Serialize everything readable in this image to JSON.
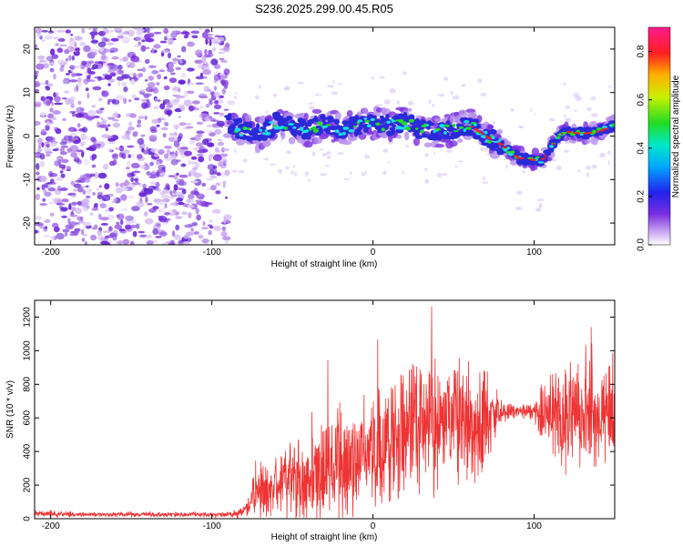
{
  "title": "S236.2025.299.00.45.R05",
  "chart_data": [
    {
      "type": "heatmap",
      "title": "S236.2025.299.00.45.R05",
      "xlabel": "Height of straight line (km)",
      "ylabel": "Frequency (Hz)",
      "xlim": [
        -210,
        150
      ],
      "ylim": [
        -25,
        25
      ],
      "x_ticks": [
        -200,
        -100,
        0,
        100
      ],
      "y_ticks": [
        -20,
        -10,
        0,
        10,
        20
      ],
      "noise_region_x": [
        -210,
        -90
      ],
      "signal_track": {
        "x": [
          -90,
          -80,
          -70,
          -60,
          -50,
          -40,
          -30,
          -20,
          -10,
          0,
          10,
          20,
          30,
          40,
          50,
          60,
          70,
          80,
          90,
          100,
          105,
          110,
          115,
          120,
          130,
          140,
          150
        ],
        "freq_hz": [
          3,
          1,
          0.5,
          3,
          2,
          1.5,
          3,
          1.5,
          2.5,
          3,
          2.5,
          3,
          1.5,
          1,
          1.5,
          2.5,
          0,
          -2,
          -5,
          -5.5,
          -5.5,
          -3,
          0,
          1,
          0.5,
          1,
          2.5
        ]
      },
      "colorbar": {
        "label": "Normalized spectral amplitude",
        "range": [
          0,
          0.9
        ],
        "ticks": [
          "0.0",
          "0.2",
          "0.4",
          "0.6",
          "0.8"
        ]
      },
      "colors": {
        "noise": "#7a2fe0",
        "low": "#2a2ad8",
        "mid": "#18e0e0",
        "high": "#22dd22",
        "peak": "#ee2222"
      }
    },
    {
      "type": "line",
      "xlabel": "Height of straight line (km)",
      "ylabel": "SNR (10 * v/v)",
      "xlim": [
        -210,
        150
      ],
      "ylim": [
        0,
        1300
      ],
      "x_ticks": [
        -200,
        -100,
        0,
        100
      ],
      "y_ticks": [
        0,
        200,
        400,
        600,
        800,
        1000,
        1200
      ],
      "series": [
        {
          "name": "SNR",
          "color": "#ee3333",
          "x": [
            -210,
            -180,
            -150,
            -120,
            -90,
            -80,
            -75,
            -70,
            -60,
            -50,
            -40,
            -30,
            -20,
            -10,
            0,
            10,
            20,
            30,
            40,
            50,
            60,
            70,
            80,
            90,
            100,
            110,
            120,
            130,
            140,
            150
          ],
          "y": [
            30,
            25,
            25,
            25,
            25,
            40,
            100,
            150,
            180,
            220,
            250,
            280,
            300,
            350,
            400,
            480,
            550,
            600,
            580,
            600,
            580,
            600,
            640,
            640,
            630,
            620,
            600,
            650,
            620,
            620
          ],
          "spread": [
            20,
            15,
            15,
            15,
            15,
            40,
            100,
            150,
            200,
            220,
            280,
            300,
            320,
            330,
            350,
            380,
            400,
            420,
            420,
            380,
            360,
            300,
            60,
            40,
            50,
            280,
            320,
            320,
            300,
            300
          ]
        }
      ]
    }
  ]
}
